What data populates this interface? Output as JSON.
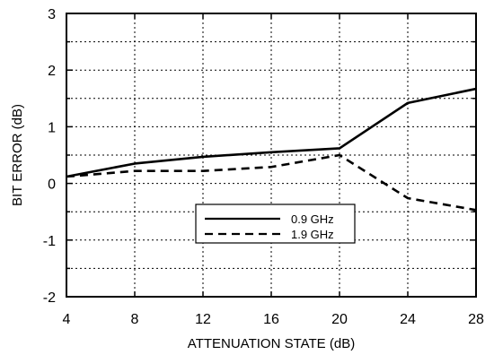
{
  "chart_data": {
    "type": "line",
    "xlabel": "ATTENUATION STATE (dB)",
    "ylabel": "BIT ERROR (dB)",
    "xlim": [
      4,
      28
    ],
    "ylim": [
      -2,
      3
    ],
    "x_ticks": [
      4,
      8,
      12,
      16,
      20,
      24,
      28
    ],
    "y_ticks": [
      -2,
      -1,
      0,
      1,
      2,
      3
    ],
    "y_tick_labels": [
      "-2",
      "-1",
      "0",
      "1",
      "2",
      "3"
    ],
    "grid": true,
    "grid_style": "dotted",
    "legend_position": "lower-center",
    "x": [
      4,
      8,
      12,
      16,
      20,
      24,
      28
    ],
    "series": [
      {
        "name": "0.9 GHz",
        "style": "solid",
        "color": "#000000",
        "values": [
          0.12,
          0.35,
          0.47,
          0.55,
          0.62,
          1.42,
          1.67
        ]
      },
      {
        "name": "1.9 GHz",
        "style": "dashed",
        "color": "#000000",
        "values": [
          0.12,
          0.22,
          0.22,
          0.29,
          0.5,
          -0.26,
          -0.47
        ]
      }
    ]
  }
}
